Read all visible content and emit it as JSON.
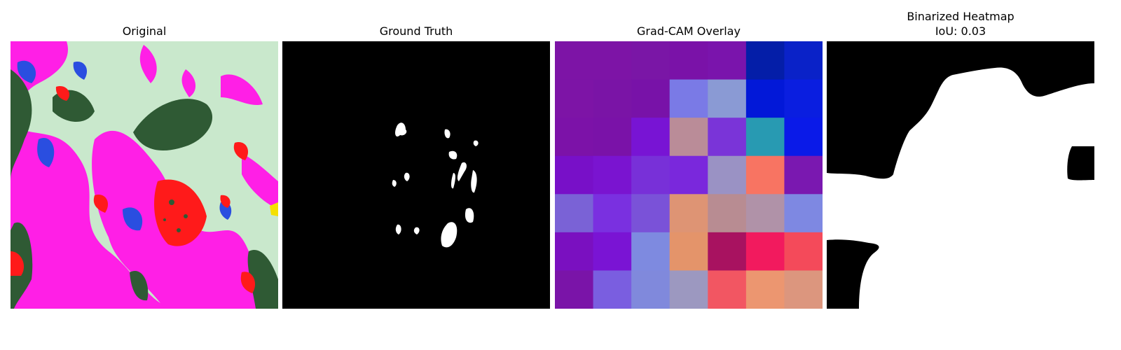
{
  "panels": [
    {
      "title": "Original"
    },
    {
      "title": "Ground Truth"
    },
    {
      "title": "Grad-CAM Overlay"
    },
    {
      "title": "Binarized Heatmap",
      "subtitle": "IoU: 0.03"
    }
  ],
  "colors": {
    "magenta": "#ff1fe6",
    "pale_green": "#c9e8cc",
    "dark_green": "#2f5a34",
    "blue": "#2a4ee0",
    "red": "#ff1a1a"
  },
  "gradcam_grid": [
    [
      "#7d14a6",
      "#7d14a6",
      "#7a16a6",
      "#7a12a8",
      "#7a14ac",
      "#041ea8",
      "#0a22c8"
    ],
    [
      "#7d14a6",
      "#7a14a6",
      "#7812a8",
      "#7a7ae6",
      "#8a9ad4",
      "#0218d8",
      "#0a1ee0"
    ],
    [
      "#7c12a8",
      "#7a12a8",
      "#7814d4",
      "#ba8c98",
      "#7a34d8",
      "#289ab2",
      "#0a1ae8"
    ],
    [
      "#7810c8",
      "#7a14d0",
      "#7830d8",
      "#7a28dc",
      "#9a92c4",
      "#f87462",
      "#7a18b0"
    ],
    [
      "#7a62d6",
      "#7a30e0",
      "#7a52d8",
      "#de9474",
      "#b88c92",
      "#b092a8",
      "#7e88e2"
    ],
    [
      "#7a10c0",
      "#7a14d4",
      "#7e8ae0",
      "#e4946a",
      "#a81260",
      "#f21a5e",
      "#f44a5a"
    ],
    [
      "#7a14a8",
      "#7a5ee0",
      "#8089dc",
      "#9c98c0",
      "#f25662",
      "#ec9670",
      "#dc967e"
    ]
  ]
}
